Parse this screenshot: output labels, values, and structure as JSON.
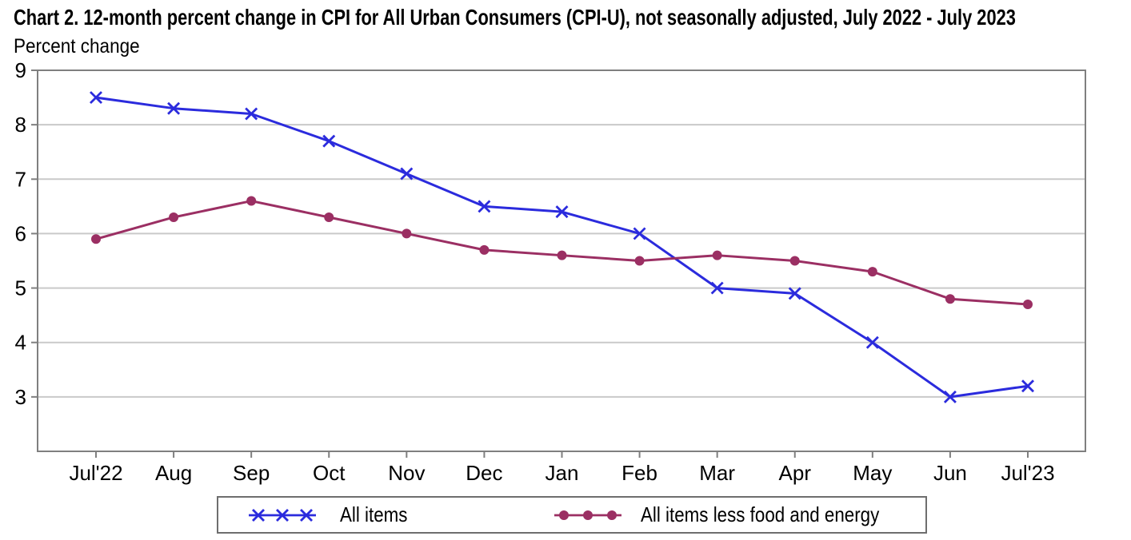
{
  "title": "Chart 2. 12-month percent change in CPI for All Urban Consumers (CPI-U), not seasonally adjusted, July 2022 - July 2023",
  "subtitle": "Percent change",
  "colors": {
    "all_items_blue": "#2b2bdd",
    "core_maroon": "#9b2f63",
    "gridline": "#c9c9c9",
    "axis_border": "#7f7f7f",
    "legend_border": "#6e6e6e",
    "text": "#000000"
  },
  "chart_data": {
    "type": "line",
    "title": "Chart 2. 12-month percent change in CPI for All Urban Consumers (CPI-U), not seasonally adjusted, July 2022 - July 2023",
    "ylabel": "Percent change",
    "categories": [
      "Jul'22",
      "Aug",
      "Sep",
      "Oct",
      "Nov",
      "Dec",
      "Jan",
      "Feb",
      "Mar",
      "Apr",
      "May",
      "Jun",
      "Jul'23"
    ],
    "series": [
      {
        "name": "All items",
        "marker": "x",
        "color": "#2b2bdd",
        "values": [
          8.5,
          8.3,
          8.2,
          7.7,
          7.1,
          6.5,
          6.4,
          6.0,
          5.0,
          4.9,
          4.0,
          3.0,
          3.2
        ]
      },
      {
        "name": "All items less food and energy",
        "marker": "circle",
        "color": "#9b2f63",
        "values": [
          5.9,
          6.3,
          6.6,
          6.3,
          6.0,
          5.7,
          5.6,
          5.5,
          5.6,
          5.5,
          5.3,
          4.8,
          4.7
        ]
      }
    ],
    "ylim": [
      2,
      9
    ],
    "yticks": [
      3,
      4,
      5,
      6,
      7,
      8,
      9
    ],
    "gridlines": [
      3,
      4,
      5,
      6,
      7,
      8
    ],
    "grid": "horizontal",
    "legend_position": "bottom"
  }
}
